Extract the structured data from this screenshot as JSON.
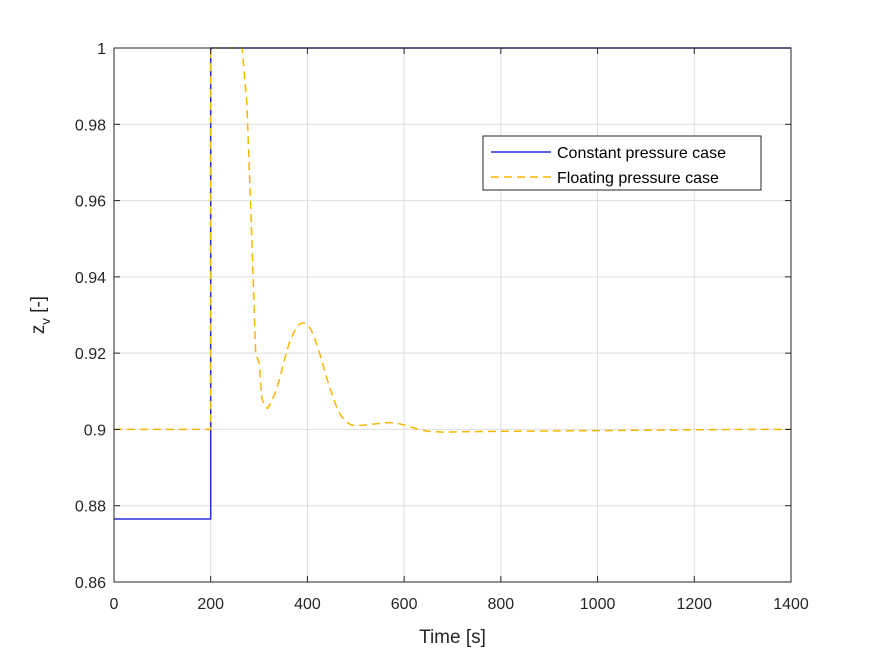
{
  "chart_data": {
    "type": "line",
    "xlabel": "Time [s]",
    "ylabel": "z",
    "ylabel_subscript": "v",
    "ylabel_suffix": " [-]",
    "xlim": [
      0,
      1400
    ],
    "ylim": [
      0.86,
      1.0
    ],
    "x_ticks": [
      0,
      200,
      400,
      600,
      800,
      1000,
      1200,
      1400
    ],
    "x_tick_labels": [
      "0",
      "200",
      "400",
      "600",
      "800",
      "1000",
      "1200",
      "1400"
    ],
    "y_ticks": [
      0.86,
      0.88,
      0.9,
      0.92,
      0.94,
      0.96,
      0.98,
      1.0
    ],
    "y_tick_labels": [
      "0.86",
      "0.88",
      "0.9",
      "0.92",
      "0.94",
      "0.96",
      "0.98",
      "1"
    ],
    "grid": true,
    "legend_position": "upper-right",
    "series": [
      {
        "name": "Constant pressure case",
        "color": "#2b2bd9",
        "style": "solid",
        "x": [
          0,
          200,
          200,
          1400
        ],
        "y": [
          0.8765,
          0.8765,
          1.0,
          1.0
        ]
      },
      {
        "name": "Floating pressure case",
        "color": "#f5b800",
        "style": "dashed",
        "x": [
          0,
          200,
          200,
          265,
          275,
          285,
          293,
          300,
          306,
          312,
          318,
          325,
          333,
          342,
          352,
          362,
          372,
          382,
          392,
          400,
          408,
          416,
          424,
          432,
          440,
          450,
          460,
          470,
          480,
          490,
          500,
          515,
          530,
          550,
          570,
          590,
          610,
          630,
          650,
          680,
          720,
          800,
          900,
          1000,
          1100,
          1200,
          1300,
          1400
        ],
        "y": [
          0.9,
          0.9,
          1.0,
          1.0,
          0.985,
          0.95,
          0.92,
          0.9175,
          0.908,
          0.906,
          0.9055,
          0.9072,
          0.9095,
          0.913,
          0.918,
          0.9225,
          0.9255,
          0.9275,
          0.928,
          0.9275,
          0.926,
          0.9235,
          0.9205,
          0.917,
          0.9135,
          0.9095,
          0.906,
          0.9035,
          0.902,
          0.9012,
          0.901,
          0.9011,
          0.9013,
          0.9016,
          0.9018,
          0.9015,
          0.9008,
          0.9,
          0.8995,
          0.8993,
          0.8994,
          0.8995,
          0.8996,
          0.8997,
          0.8998,
          0.8999,
          0.9,
          0.9
        ]
      }
    ]
  }
}
